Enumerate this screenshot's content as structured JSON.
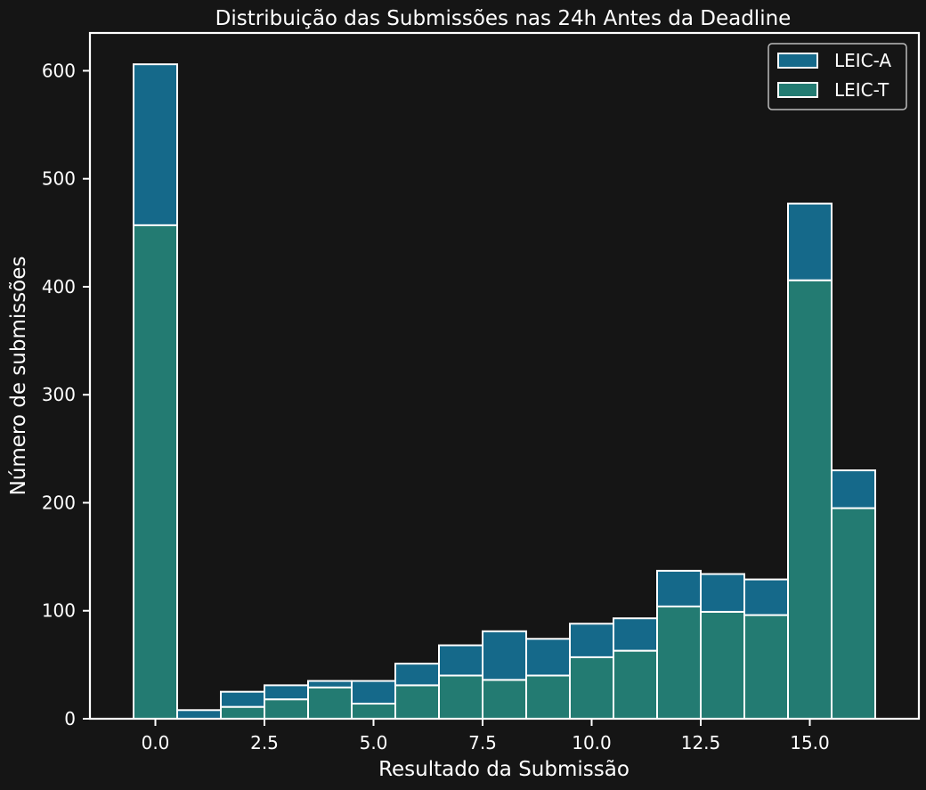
{
  "chart_data": {
    "type": "bar",
    "stacked": true,
    "title": "Distribuição das Submissões nas 24h Antes da Deadline",
    "xlabel": "Resultado da Submissão",
    "ylabel": "Número de submissões",
    "x": [
      0,
      1,
      2,
      3,
      4,
      5,
      6,
      7,
      8,
      9,
      10,
      11,
      12,
      13,
      14,
      15,
      16
    ],
    "bin_width": 1,
    "xlim": [
      -1.5,
      17.5
    ],
    "ylim": [
      0,
      635
    ],
    "xticks": [
      0,
      2.5,
      5,
      7.5,
      10,
      12.5,
      15
    ],
    "xtick_labels": [
      "0.0",
      "2.5",
      "5.0",
      "7.5",
      "10.0",
      "12.5",
      "15.0"
    ],
    "yticks": [
      0,
      100,
      200,
      300,
      400,
      500,
      600
    ],
    "ytick_labels": [
      "0",
      "100",
      "200",
      "300",
      "400",
      "500",
      "600"
    ],
    "series": [
      {
        "name": "LEIC-A",
        "color": "#15698a",
        "values": [
          149,
          8,
          14,
          13,
          6,
          21,
          20,
          28,
          45,
          34,
          31,
          30,
          33,
          35,
          33,
          71,
          35
        ]
      },
      {
        "name": "LEIC-T",
        "color": "#237b72",
        "values": [
          457,
          0,
          11,
          18,
          29,
          14,
          31,
          40,
          36,
          40,
          57,
          63,
          104,
          99,
          96,
          406,
          195
        ]
      }
    ],
    "legend": {
      "position": "top-right",
      "entries": [
        "LEIC-A",
        "LEIC-T"
      ]
    },
    "grid": false,
    "background": "#151515",
    "edge_color": "#ffffff"
  }
}
